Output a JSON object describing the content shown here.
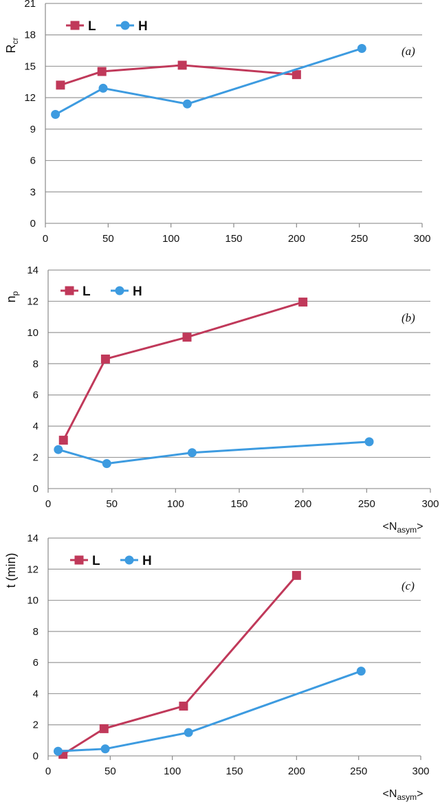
{
  "colors": {
    "L": "#C0395A",
    "H": "#3D9BE0",
    "grid": "#9a9a9a",
    "axis": "#8a8a8a"
  },
  "chart_data": [
    {
      "type": "line",
      "panel_label": "(a)",
      "ylabel": "R",
      "ylabel_sub": "cr",
      "xlabel": "",
      "xlabel_sub": "",
      "xlim": [
        0,
        300
      ],
      "ylim": [
        0,
        21
      ],
      "xticks": [
        "0",
        "50",
        "100",
        "150",
        "200",
        "250",
        "300"
      ],
      "yticks": [
        "0",
        "3",
        "6",
        "9",
        "12",
        "15",
        "18",
        "21"
      ],
      "legend_position": "top-left",
      "series": [
        {
          "name": "L",
          "marker": "square",
          "x": [
            12,
            45,
            109,
            200
          ],
          "y": [
            13.2,
            14.5,
            15.1,
            14.2
          ]
        },
        {
          "name": "H",
          "marker": "circle",
          "x": [
            8,
            46,
            113,
            252
          ],
          "y": [
            10.4,
            12.9,
            11.4,
            16.7
          ]
        }
      ]
    },
    {
      "type": "line",
      "panel_label": "(b)",
      "ylabel": "n",
      "ylabel_sub": "p",
      "xlabel": "<N",
      "xlabel_sub": "asym",
      "xlabel_end": ">",
      "xlim": [
        0,
        300
      ],
      "ylim": [
        0,
        14
      ],
      "xticks": [
        "0",
        "50",
        "100",
        "150",
        "200",
        "250",
        "300"
      ],
      "yticks": [
        "0",
        "2",
        "4",
        "6",
        "8",
        "10",
        "12",
        "14"
      ],
      "legend_position": "top-left",
      "series": [
        {
          "name": "L",
          "marker": "square",
          "x": [
            12,
            45,
            109,
            200
          ],
          "y": [
            3.1,
            8.3,
            9.7,
            11.95
          ]
        },
        {
          "name": "H",
          "marker": "circle",
          "x": [
            8,
            46,
            113,
            252
          ],
          "y": [
            2.5,
            1.6,
            2.3,
            3.0
          ]
        }
      ]
    },
    {
      "type": "line",
      "panel_label": "(c)",
      "ylabel": "t (min)",
      "ylabel_sub": "",
      "xlabel": "<N",
      "xlabel_sub": "asym",
      "xlabel_end": ">",
      "xlim": [
        0,
        300
      ],
      "ylim": [
        0,
        14
      ],
      "xticks": [
        "0",
        "50",
        "100",
        "150",
        "200",
        "250",
        "300"
      ],
      "yticks": [
        "0",
        "2",
        "4",
        "6",
        "8",
        "10",
        "12",
        "14"
      ],
      "legend_position": "top-left",
      "series": [
        {
          "name": "L",
          "marker": "square",
          "x": [
            12,
            45,
            109,
            200
          ],
          "y": [
            0.1,
            1.75,
            3.2,
            11.6
          ]
        },
        {
          "name": "H",
          "marker": "circle",
          "x": [
            8,
            46,
            113,
            252
          ],
          "y": [
            0.3,
            0.45,
            1.5,
            5.45
          ]
        }
      ]
    }
  ]
}
